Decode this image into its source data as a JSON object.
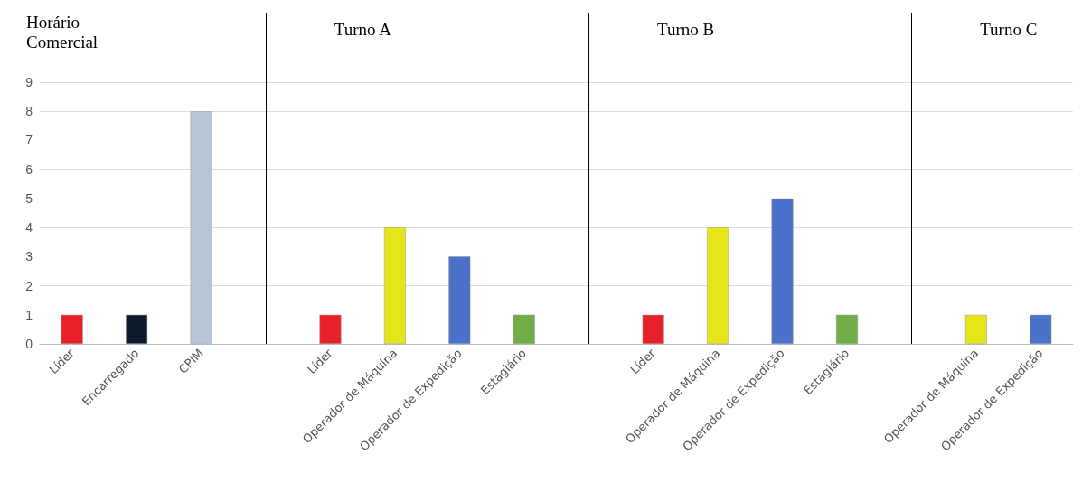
{
  "chart_data": {
    "type": "bar",
    "categories": [
      "Líder",
      "Encarregado",
      "CPIM",
      null,
      "Líder",
      "Operador de Máquina",
      "Operador de Expedição",
      "Estagiário",
      null,
      "Líder",
      "Operador de Máquina",
      "Operador de Expedição",
      "Estagiário",
      null,
      "Operador de Máquina",
      "Operador de Expedição"
    ],
    "values": [
      1,
      1,
      8,
      null,
      1,
      4,
      3,
      1,
      null,
      1,
      4,
      5,
      1,
      null,
      1,
      1
    ],
    "colors": [
      "#e8202a",
      "#0d1a2e",
      "#b8c4d8",
      null,
      "#e8202a",
      "#e5e61a",
      "#4a72c8",
      "#70ad47",
      null,
      "#e8202a",
      "#e5e61a",
      "#4a72c8",
      "#70ad47",
      null,
      "#e5e61a",
      "#4a72c8"
    ],
    "annotations": [
      "Horário Comercial",
      "Turno A",
      "Turno B",
      "Turno C"
    ],
    "ylim": [
      0,
      9
    ],
    "yticks": [
      0,
      1,
      2,
      3,
      4,
      5,
      6,
      7,
      8,
      9
    ],
    "grid": "y"
  }
}
